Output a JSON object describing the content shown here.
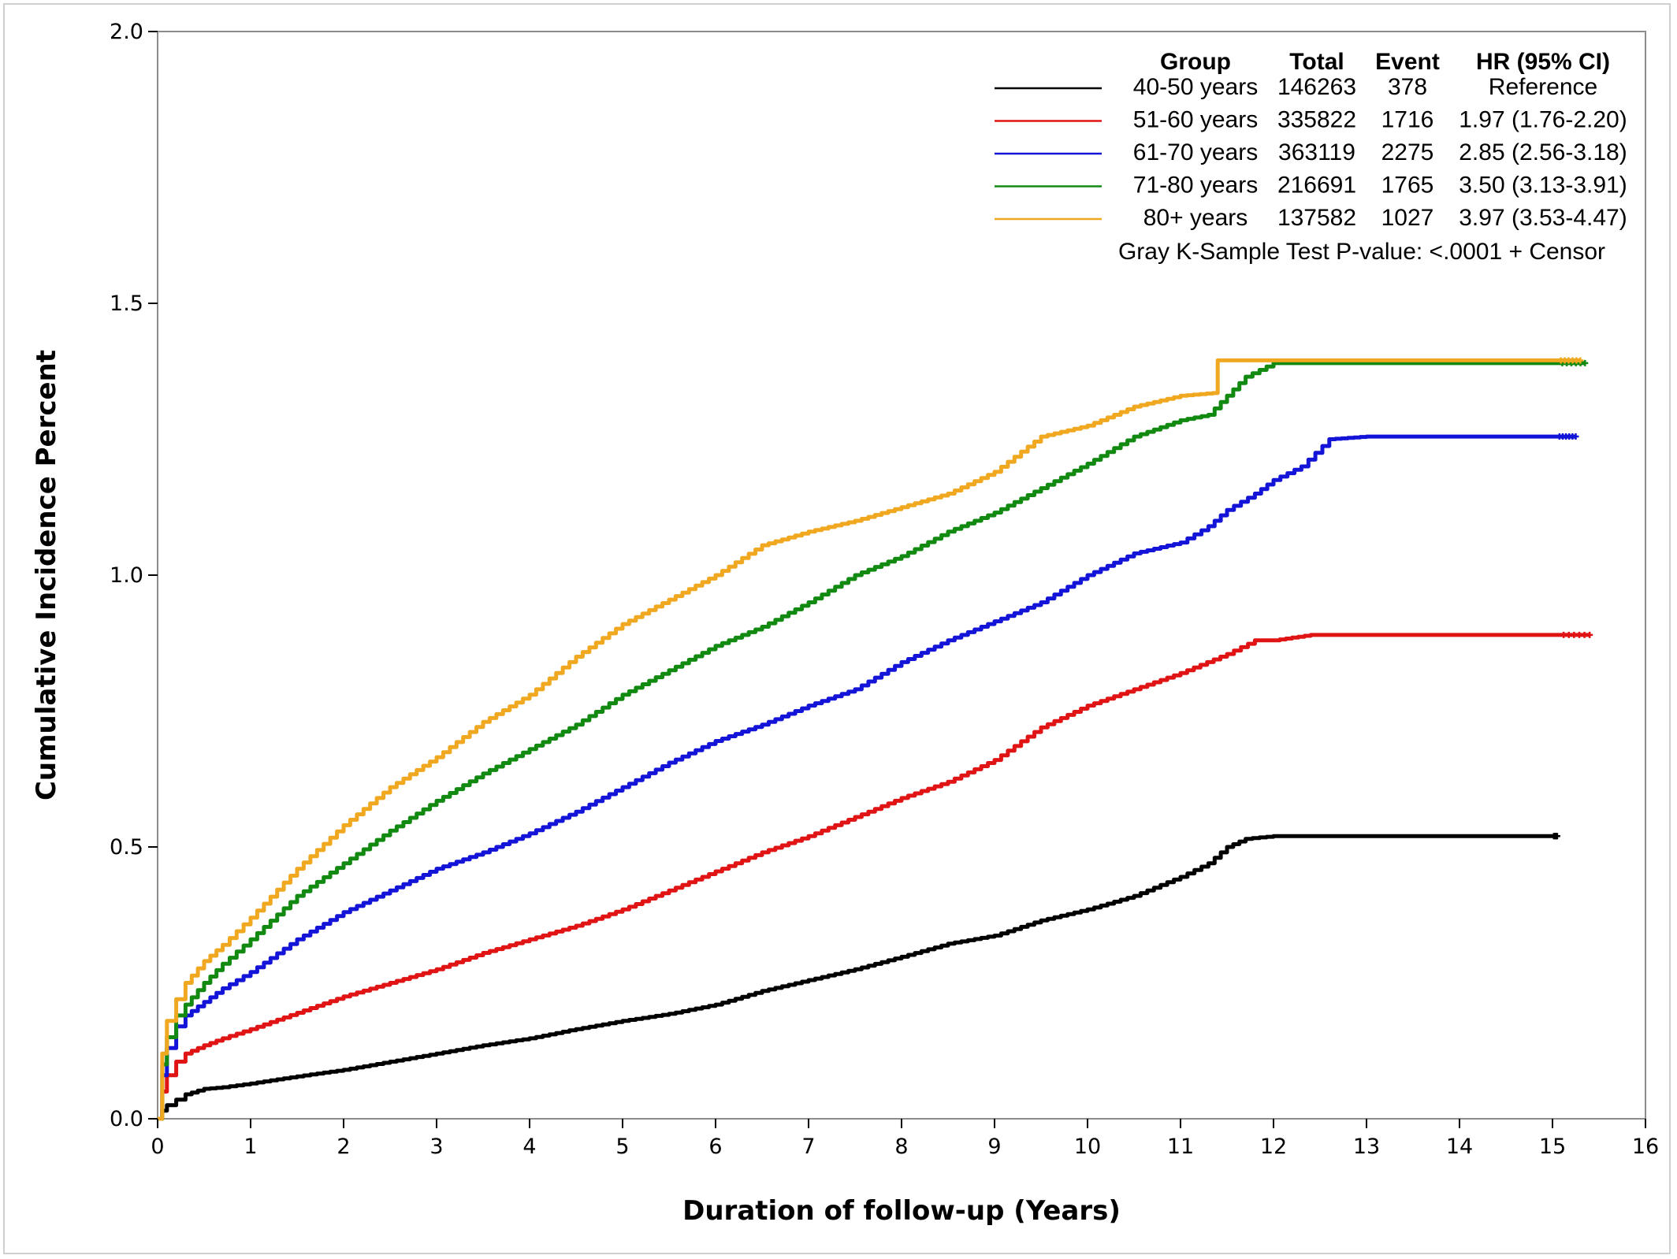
{
  "chart_data": {
    "type": "line",
    "xlabel": "Duration of follow-up (Years)",
    "ylabel": "Cumulative Incidence Percent",
    "xlim": [
      0,
      16
    ],
    "ylim": [
      0,
      2.0
    ],
    "x_ticks": [
      0,
      1,
      2,
      3,
      4,
      5,
      6,
      7,
      8,
      9,
      10,
      11,
      12,
      13,
      14,
      15,
      16
    ],
    "x_tick_labels": [
      "0",
      "1",
      "2",
      "3",
      "4",
      "5",
      "6",
      "7",
      "8",
      "9",
      "10",
      "11",
      "12",
      "13",
      "14",
      "15",
      "16"
    ],
    "y_ticks": [
      0,
      0.5,
      1.0,
      1.5,
      2.0
    ],
    "y_tick_labels": [
      "0.0",
      "0.5",
      "1.0",
      "1.5",
      "2.0"
    ],
    "grid": false,
    "legend": {
      "placement": "top-right",
      "headers": [
        "Group",
        "Total",
        "Event",
        "HR (95% CI)"
      ],
      "footer": "Gray K-Sample Test P-value: <.0001 +  Censor"
    },
    "series": [
      {
        "name": "40-50 years",
        "total": "146263",
        "event": "378",
        "hr": "Reference",
        "color": "#000000",
        "x": [
          0,
          0.05,
          0.1,
          0.2,
          0.3,
          0.5,
          0.7,
          1,
          1.5,
          2,
          2.5,
          3,
          3.5,
          4,
          4.5,
          5,
          5.5,
          6,
          6.5,
          7,
          7.5,
          8,
          8.5,
          9,
          9.5,
          10,
          10.5,
          11,
          11.3,
          11.5,
          11.7,
          12,
          13,
          14,
          15,
          15.05
        ],
        "y": [
          0,
          0.015,
          0.025,
          0.035,
          0.045,
          0.055,
          0.058,
          0.065,
          0.078,
          0.09,
          0.105,
          0.12,
          0.135,
          0.148,
          0.165,
          0.18,
          0.193,
          0.21,
          0.235,
          0.255,
          0.275,
          0.298,
          0.322,
          0.337,
          0.365,
          0.385,
          0.41,
          0.445,
          0.47,
          0.5,
          0.515,
          0.52,
          0.52,
          0.52,
          0.52,
          0.52
        ]
      },
      {
        "name": "51-60 years",
        "total": "335822",
        "event": "1716",
        "hr": "1.97 (1.76-2.20)",
        "color": "#e01414",
        "x": [
          0,
          0.05,
          0.1,
          0.2,
          0.3,
          0.5,
          0.7,
          1,
          1.5,
          2,
          2.5,
          3,
          3.5,
          4,
          4.5,
          5,
          5.5,
          6,
          6.5,
          7,
          7.5,
          8,
          8.5,
          9,
          9.5,
          10,
          10.5,
          11,
          11.5,
          11.8,
          12,
          12.4,
          13,
          14,
          15,
          15.4
        ],
        "y": [
          0,
          0.05,
          0.08,
          0.105,
          0.12,
          0.135,
          0.148,
          0.165,
          0.195,
          0.225,
          0.25,
          0.275,
          0.305,
          0.33,
          0.355,
          0.385,
          0.42,
          0.455,
          0.49,
          0.52,
          0.555,
          0.59,
          0.62,
          0.66,
          0.72,
          0.76,
          0.79,
          0.82,
          0.855,
          0.88,
          0.88,
          0.89,
          0.89,
          0.89,
          0.89,
          0.89
        ]
      },
      {
        "name": "61-70 years",
        "total": "363119",
        "event": "2275",
        "hr": "2.85 (2.56-3.18)",
        "color": "#1414d8",
        "x": [
          0,
          0.05,
          0.1,
          0.2,
          0.3,
          0.5,
          0.7,
          1,
          1.5,
          2,
          2.5,
          3,
          3.5,
          4,
          4.5,
          5,
          5.5,
          6,
          6.5,
          7,
          7.5,
          8,
          8.5,
          9,
          9.5,
          10,
          10.5,
          11,
          11.3,
          11.5,
          11.8,
          12,
          12.3,
          12.6,
          13,
          14,
          15,
          15.25
        ],
        "y": [
          0,
          0.08,
          0.13,
          0.17,
          0.19,
          0.215,
          0.24,
          0.27,
          0.33,
          0.38,
          0.42,
          0.46,
          0.49,
          0.525,
          0.565,
          0.61,
          0.655,
          0.695,
          0.725,
          0.76,
          0.79,
          0.84,
          0.88,
          0.915,
          0.95,
          1.0,
          1.04,
          1.06,
          1.09,
          1.12,
          1.15,
          1.175,
          1.2,
          1.25,
          1.255,
          1.255,
          1.255,
          1.255
        ]
      },
      {
        "name": "71-80 years",
        "total": "216691",
        "event": "1765",
        "hr": "3.50 (3.13-3.91)",
        "color": "#128a12",
        "x": [
          0,
          0.05,
          0.1,
          0.2,
          0.3,
          0.5,
          0.7,
          1,
          1.5,
          2,
          2.5,
          3,
          3.5,
          4,
          4.5,
          5,
          5.5,
          6,
          6.5,
          7,
          7.5,
          8,
          8.5,
          9,
          9.5,
          10,
          10.5,
          11,
          11.3,
          11.5,
          11.7,
          12,
          13,
          14,
          15,
          15.35
        ],
        "y": [
          0,
          0.1,
          0.15,
          0.19,
          0.21,
          0.25,
          0.285,
          0.33,
          0.41,
          0.47,
          0.53,
          0.585,
          0.635,
          0.68,
          0.725,
          0.78,
          0.825,
          0.87,
          0.905,
          0.95,
          1.0,
          1.035,
          1.08,
          1.115,
          1.16,
          1.205,
          1.255,
          1.285,
          1.295,
          1.33,
          1.365,
          1.39,
          1.39,
          1.39,
          1.39,
          1.39
        ]
      },
      {
        "name": "80+ years",
        "total": "137582",
        "event": "1027",
        "hr": "3.97 (3.53-4.47)",
        "color": "#f0a820",
        "x": [
          0,
          0.05,
          0.1,
          0.2,
          0.3,
          0.5,
          0.7,
          1,
          1.5,
          2,
          2.5,
          3,
          3.5,
          4,
          4.5,
          5,
          5.5,
          6,
          6.5,
          7,
          7.5,
          8,
          8.5,
          9,
          9.5,
          10,
          10.5,
          11,
          11.35,
          11.4,
          12,
          13,
          14,
          15,
          15.3
        ],
        "y": [
          0,
          0.12,
          0.18,
          0.22,
          0.25,
          0.29,
          0.32,
          0.37,
          0.46,
          0.54,
          0.61,
          0.665,
          0.73,
          0.78,
          0.85,
          0.91,
          0.955,
          1.0,
          1.055,
          1.08,
          1.1,
          1.125,
          1.15,
          1.19,
          1.255,
          1.275,
          1.31,
          1.33,
          1.335,
          1.395,
          1.395,
          1.395,
          1.395,
          1.395,
          1.395
        ]
      }
    ]
  }
}
